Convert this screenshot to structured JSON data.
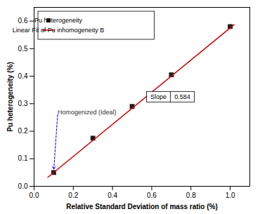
{
  "chart_data": {
    "type": "scatter",
    "xlabel": "Relative Standard Deviation of mass ratio (%)",
    "ylabel": "Pu heterogeneity (%)",
    "xlim": [
      0.0,
      1.1
    ],
    "ylim": [
      0.0,
      0.65
    ],
    "xticks": [
      {
        "value": 0,
        "label": "0.0"
      },
      0.2,
      0.4,
      0.6,
      0.8,
      {
        "value": 1,
        "label": "1.0"
      }
    ],
    "yticks": [
      {
        "value": 0,
        "label": "0.0"
      },
      0.1,
      0.2,
      0.3,
      0.4,
      0.5,
      0.6
    ],
    "legend": "upper left",
    "series": [
      {
        "name": "Pu heterogeneity",
        "type": "scatter",
        "marker": "square",
        "color": "#1a1a1a",
        "x": [
          0.1,
          0.3,
          0.5,
          0.7,
          1.0
        ],
        "values": [
          0.05,
          0.175,
          0.29,
          0.405,
          0.58
        ]
      },
      {
        "name": "Linear Fit of Pu inhomogeneity B",
        "type": "line",
        "color": "#cc0000",
        "x": [
          0.07,
          1.02
        ],
        "values": [
          0.03248,
          0.58728
        ]
      }
    ],
    "annotations": [
      {
        "text": "Homogenized (Ideal)",
        "x": 0.12,
        "y": 0.26,
        "arrow_x": 0.1,
        "arrow_y": 0.057,
        "color": "#333333",
        "arrow_color": "#0000ff"
      },
      {
        "text": "Slope",
        "value": 0.584,
        "x": 0.575,
        "y": 0.305
      }
    ]
  }
}
